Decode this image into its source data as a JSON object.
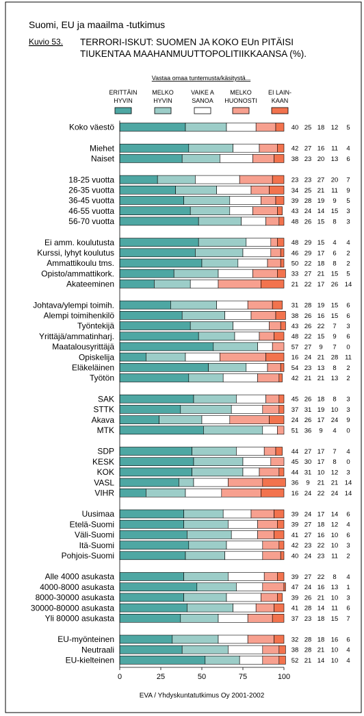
{
  "header": {
    "suptitle": "Suomi, EU ja maailma -tutkimus",
    "figure_label": "Kuvio 53.",
    "title_line1": "TERRORI-ISKUT: SUOMEN JA KOKO EUn PITÄISI",
    "title_line2": "TIUKENTAA MAAHANMUUTTOPOLITIIKKAANSA (%)."
  },
  "footer": {
    "source": "EVA / Yhdyskuntatutkimus Oy 2001-2002"
  },
  "colors": {
    "s1": "#4ea7a3",
    "s2": "#9ccdc8",
    "s3": "#ffffff",
    "s4": "#f7a08f",
    "s5": "#f2734e",
    "frame": "#000000"
  },
  "chart_data": {
    "type": "bar",
    "stacked": true,
    "orientation": "horizontal",
    "legend_caption": "Vastaa omaa tuntemusta/käsitystä...",
    "legend_position": "top",
    "series": [
      {
        "name": "ERITTÄIN HYVIN",
        "label_lines": [
          "ERITTÄIN",
          "HYVIN"
        ]
      },
      {
        "name": "MELKO HYVIN",
        "label_lines": [
          "MELKO",
          "HYVIN"
        ]
      },
      {
        "name": "VAIKEA SANOA",
        "label_lines": [
          "VAIKE A",
          "SANOA"
        ]
      },
      {
        "name": "MELKO HUONOSTI",
        "label_lines": [
          "MELKO",
          "HUONOSTI"
        ]
      },
      {
        "name": "EI LAINKAAN",
        "label_lines": [
          "EI LAIN-",
          "KAAN"
        ]
      }
    ],
    "groups": [
      {
        "rows": [
          {
            "category": "Koko väestö",
            "values": [
              40,
              25,
              18,
              12,
              5
            ]
          }
        ]
      },
      {
        "rows": [
          {
            "category": "Miehet",
            "values": [
              42,
              27,
              16,
              11,
              4
            ]
          },
          {
            "category": "Naiset",
            "values": [
              38,
              23,
              20,
              13,
              6
            ]
          }
        ]
      },
      {
        "rows": [
          {
            "category": "18-25 vuotta",
            "values": [
              23,
              23,
              27,
              20,
              7
            ]
          },
          {
            "category": "26-35 vuotta",
            "values": [
              34,
              25,
              21,
              11,
              9
            ]
          },
          {
            "category": "36-45 vuotta",
            "values": [
              39,
              28,
              19,
              9,
              5
            ]
          },
          {
            "category": "46-55 vuotta",
            "values": [
              43,
              24,
              14,
              15,
              3
            ]
          },
          {
            "category": "56-70 vuotta",
            "values": [
              48,
              26,
              15,
              8,
              3
            ]
          }
        ]
      },
      {
        "rows": [
          {
            "category": "Ei amm. koulutusta",
            "values": [
              48,
              29,
              15,
              4,
              4
            ]
          },
          {
            "category": "Kurssi, lyhyt koulutus",
            "values": [
              46,
              29,
              17,
              6,
              2
            ]
          },
          {
            "category": "Ammattikoulu tms.",
            "values": [
              50,
              22,
              18,
              8,
              2
            ]
          },
          {
            "category": "Opisto/ammattikork.",
            "values": [
              33,
              27,
              21,
              15,
              5
            ]
          },
          {
            "category": "Akateeminen",
            "values": [
              21,
              22,
              17,
              26,
              14
            ]
          }
        ]
      },
      {
        "rows": [
          {
            "category": "Johtava/ylempi toimih.",
            "values": [
              31,
              28,
              19,
              15,
              6
            ]
          },
          {
            "category": "Alempi toimihenkilö",
            "values": [
              38,
              26,
              16,
              15,
              6
            ]
          },
          {
            "category": "Työntekijä",
            "values": [
              43,
              26,
              22,
              7,
              3
            ]
          },
          {
            "category": "Yrittäjä/ammatinharj.",
            "values": [
              48,
              22,
              15,
              9,
              6
            ]
          },
          {
            "category": "Maatalousyrittäjä",
            "values": [
              57,
              27,
              9,
              7,
              0
            ]
          },
          {
            "category": "Opiskelija",
            "values": [
              16,
              24,
              21,
              28,
              11
            ]
          },
          {
            "category": "Eläkeläinen",
            "values": [
              54,
              23,
              13,
              8,
              2
            ]
          },
          {
            "category": "Työtön",
            "values": [
              42,
              21,
              21,
              13,
              2
            ]
          }
        ]
      },
      {
        "rows": [
          {
            "category": "SAK",
            "values": [
              45,
              26,
              18,
              8,
              3
            ]
          },
          {
            "category": "STTK",
            "values": [
              37,
              31,
              19,
              10,
              3
            ]
          },
          {
            "category": "Akava",
            "values": [
              24,
              26,
              17,
              24,
              9
            ]
          },
          {
            "category": "MTK",
            "values": [
              51,
              36,
              9,
              4,
              0
            ]
          }
        ]
      },
      {
        "rows": [
          {
            "category": "SDP",
            "values": [
              44,
              27,
              17,
              7,
              4
            ]
          },
          {
            "category": "KESK",
            "values": [
              45,
              30,
              17,
              8,
              0
            ]
          },
          {
            "category": "KOK",
            "values": [
              44,
              31,
              10,
              12,
              3
            ]
          },
          {
            "category": "VASL",
            "values": [
              36,
              9,
              21,
              21,
              14
            ]
          },
          {
            "category": "VIHR",
            "values": [
              16,
              24,
              22,
              24,
              14
            ]
          }
        ]
      },
      {
        "rows": [
          {
            "category": "Uusimaa",
            "values": [
              39,
              24,
              17,
              14,
              6
            ]
          },
          {
            "category": "Etelä-Suomi",
            "values": [
              39,
              27,
              18,
              12,
              4
            ]
          },
          {
            "category": "Väli-Suomi",
            "values": [
              41,
              27,
              16,
              10,
              6
            ]
          },
          {
            "category": "Itä-Suomi",
            "values": [
              42,
              23,
              22,
              10,
              3
            ]
          },
          {
            "category": "Pohjois-Suomi",
            "values": [
              40,
              24,
              23,
              11,
              2
            ]
          }
        ]
      },
      {
        "rows": [
          {
            "category": "Alle 4000 asukasta",
            "values": [
              39,
              27,
              22,
              8,
              4
            ]
          },
          {
            "category": "4000-8000 asukasta",
            "values": [
              47,
              24,
              16,
              13,
              1
            ]
          },
          {
            "category": "8000-30000 asukasta",
            "values": [
              39,
              26,
              21,
              10,
              3
            ]
          },
          {
            "category": "30000-80000 asukasta",
            "values": [
              41,
              28,
              14,
              11,
              6
            ]
          },
          {
            "category": "Yli 80000 asukasta",
            "values": [
              37,
              23,
              18,
              15,
              7
            ]
          }
        ]
      },
      {
        "rows": [
          {
            "category": "EU-myönteinen",
            "values": [
              32,
              28,
              18,
              16,
              6
            ]
          },
          {
            "category": "Neutraali",
            "values": [
              38,
              28,
              21,
              10,
              4
            ]
          },
          {
            "category": "EU-kielteinen",
            "values": [
              52,
              21,
              14,
              10,
              4
            ]
          }
        ]
      }
    ],
    "xlim": [
      0,
      100
    ],
    "xticks": [
      0,
      25,
      50,
      75,
      100
    ],
    "grid": false
  }
}
